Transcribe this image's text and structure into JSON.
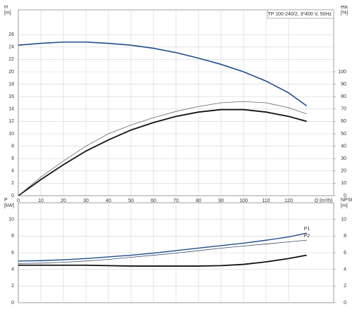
{
  "chart_data": [
    {
      "type": "line",
      "annotation": "TP 100-240/2, 3*400 V, 50Hz",
      "ylabel": [
        "H",
        "[m]"
      ],
      "y2label": [
        "eta",
        "[%]"
      ],
      "xlabel": "Q [m³/h]",
      "xlim": [
        0,
        140
      ],
      "xticks": [
        0,
        10,
        20,
        30,
        40,
        50,
        60,
        70,
        80,
        90,
        100,
        110,
        120
      ],
      "ylim": [
        0,
        30
      ],
      "yticks": [
        0,
        2,
        4,
        6,
        8,
        10,
        12,
        14,
        16,
        18,
        20,
        22,
        24,
        26
      ],
      "y2lim": [
        0,
        150
      ],
      "y2ticks": [
        0,
        10,
        20,
        30,
        40,
        50,
        60,
        70,
        80,
        90,
        100
      ],
      "grid": true,
      "series": [
        {
          "color": "#1f4e8c",
          "width": 1.6,
          "x": [
            0,
            10,
            20,
            30,
            40,
            50,
            60,
            70,
            80,
            90,
            100,
            110,
            120,
            128
          ],
          "values": [
            24.3,
            24.6,
            24.8,
            24.8,
            24.6,
            24.3,
            23.8,
            23.1,
            22.2,
            21.2,
            20.0,
            18.5,
            16.6,
            14.5
          ]
        },
        {
          "color": "#111111",
          "width": 1.8,
          "axis": "y2",
          "x": [
            0,
            10,
            20,
            30,
            40,
            50,
            60,
            70,
            80,
            90,
            100,
            110,
            120,
            128
          ],
          "values": [
            0,
            13,
            25,
            36,
            45,
            53,
            59,
            64,
            67.5,
            69.5,
            69.5,
            67.5,
            64,
            60
          ]
        },
        {
          "color": "#666666",
          "width": 0.8,
          "axis": "y2",
          "x": [
            0,
            10,
            20,
            30,
            40,
            50,
            60,
            70,
            80,
            90,
            100,
            110,
            120,
            128
          ],
          "values": [
            0,
            15,
            28,
            40,
            50,
            57,
            63,
            68,
            72,
            75,
            76,
            75,
            71,
            66
          ]
        }
      ]
    },
    {
      "type": "line",
      "ylabel": [
        "P",
        "[kW]"
      ],
      "y2label": [
        "NPSH",
        "[m]"
      ],
      "xlim": [
        0,
        140
      ],
      "ylim": [
        0,
        12
      ],
      "yticks": [
        0,
        2,
        4,
        6,
        8,
        10
      ],
      "y2lim": [
        0,
        12
      ],
      "y2ticks": [
        0,
        2,
        4,
        6,
        8,
        10
      ],
      "grid": true,
      "series": [
        {
          "name": "P1",
          "color": "#1f4e8c",
          "width": 1.4,
          "x": [
            0,
            10,
            20,
            30,
            40,
            50,
            60,
            70,
            80,
            90,
            100,
            110,
            120,
            128
          ],
          "values": [
            5.0,
            5.05,
            5.15,
            5.3,
            5.5,
            5.7,
            5.95,
            6.25,
            6.55,
            6.85,
            7.15,
            7.5,
            7.9,
            8.35
          ]
        },
        {
          "name": "P2",
          "color": "#3a4a6a",
          "width": 0.8,
          "x": [
            0,
            10,
            20,
            30,
            40,
            50,
            60,
            70,
            80,
            90,
            100,
            110,
            120,
            128
          ],
          "values": [
            4.7,
            4.75,
            4.85,
            5.0,
            5.2,
            5.45,
            5.7,
            5.95,
            6.25,
            6.55,
            6.8,
            7.05,
            7.3,
            7.5
          ]
        },
        {
          "color": "#111111",
          "width": 1.8,
          "axis": "y2",
          "x": [
            0,
            10,
            20,
            30,
            40,
            50,
            60,
            70,
            80,
            90,
            100,
            110,
            120,
            128
          ],
          "values": [
            4.5,
            4.5,
            4.5,
            4.5,
            4.45,
            4.4,
            4.4,
            4.4,
            4.4,
            4.45,
            4.6,
            4.9,
            5.3,
            5.7
          ]
        }
      ]
    }
  ]
}
